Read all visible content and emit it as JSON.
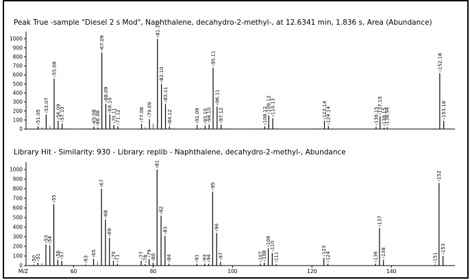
{
  "chart_data": [
    {
      "type": "bar",
      "title": "Peak True -sample \"Diesel 2 s Mod\", Naphthalene, decahydro-2-methyl-, at 12.6341 min, 1.836 s, Area (Abundance)",
      "xlabel": "",
      "ylabel": "",
      "xlim": [
        48,
        156
      ],
      "ylim": [
        0,
        1050
      ],
      "yticks": [
        0,
        100,
        200,
        300,
        400,
        500,
        600,
        700,
        800,
        900,
        1000
      ],
      "label_prefix": "‹",
      "peaks": [
        {
          "mz": 51.05,
          "y": 30,
          "label": "51.05"
        },
        {
          "mz": 53.07,
          "y": 160,
          "label": "53.07"
        },
        {
          "mz": 55.08,
          "y": 560,
          "label": "55.08"
        },
        {
          "mz": 56.09,
          "y": 90,
          "label": "56.09"
        },
        {
          "mz": 57.1,
          "y": 60,
          "label": "57.10"
        },
        {
          "mz": 65.08,
          "y": 28,
          "label": "65.08"
        },
        {
          "mz": 66.08,
          "y": 18,
          "label": "66.08"
        },
        {
          "mz": 67.09,
          "y": 850,
          "label": "67.09"
        },
        {
          "mz": 68.09,
          "y": 280,
          "label": "68.09"
        },
        {
          "mz": 69.1,
          "y": 160,
          "label": "69.10"
        },
        {
          "mz": 70.11,
          "y": 45,
          "label": "70.11"
        },
        {
          "mz": 71.12,
          "y": 30,
          "label": "71.12"
        },
        {
          "mz": 77.08,
          "y": 55,
          "label": "77.08"
        },
        {
          "mz": 79.09,
          "y": 110,
          "label": "79.09"
        },
        {
          "mz": 81.1,
          "y": 1000,
          "label": "81.10"
        },
        {
          "mz": 82.1,
          "y": 500,
          "label": "82.10"
        },
        {
          "mz": 83.11,
          "y": 280,
          "label": "83.11"
        },
        {
          "mz": 84.12,
          "y": 30,
          "label": "84.12"
        },
        {
          "mz": 91.09,
          "y": 45,
          "label": "91.09"
        },
        {
          "mz": 93.1,
          "y": 40,
          "label": "93.10"
        },
        {
          "mz": 94.1,
          "y": 50,
          "label": "94.10"
        },
        {
          "mz": 95.11,
          "y": 680,
          "label": "95.11"
        },
        {
          "mz": 96.11,
          "y": 250,
          "label": "96.11"
        },
        {
          "mz": 97.12,
          "y": 50,
          "label": "97.12"
        },
        {
          "mz": 108.12,
          "y": 30,
          "label": "108.12"
        },
        {
          "mz": 109.12,
          "y": 150,
          "label": "109.12"
        },
        {
          "mz": 110.13,
          "y": 120,
          "label": "110.13"
        },
        {
          "mz": 123.14,
          "y": 90,
          "label": "123.14"
        },
        {
          "mz": 124.14,
          "y": 30,
          "label": "124.14"
        },
        {
          "mz": 136.15,
          "y": 25,
          "label": "136.15"
        },
        {
          "mz": 137.15,
          "y": 140,
          "label": "137.15"
        },
        {
          "mz": 138.15,
          "y": 15,
          "label": "138.15"
        },
        {
          "mz": 138.94,
          "y": 20,
          "label": "138.94"
        },
        {
          "mz": 152.18,
          "y": 620,
          "label": "152.18"
        },
        {
          "mz": 153.18,
          "y": 90,
          "label": "153.18"
        }
      ],
      "minor_peaks": [
        {
          "mz": 52.0,
          "y": 20
        },
        {
          "mz": 54.0,
          "y": 35
        },
        {
          "mz": 58.0,
          "y": 8
        },
        {
          "mz": 63.0,
          "y": 10
        },
        {
          "mz": 64.0,
          "y": 8
        },
        {
          "mz": 78.0,
          "y": 20
        },
        {
          "mz": 80.0,
          "y": 60
        },
        {
          "mz": 85.0,
          "y": 10
        },
        {
          "mz": 92.0,
          "y": 12
        },
        {
          "mz": 98.0,
          "y": 8
        },
        {
          "mz": 105.0,
          "y": 6
        },
        {
          "mz": 107.0,
          "y": 8
        },
        {
          "mz": 111.0,
          "y": 10
        },
        {
          "mz": 121.0,
          "y": 6
        },
        {
          "mz": 122.0,
          "y": 8
        },
        {
          "mz": 139.0,
          "y": 6
        },
        {
          "mz": 151.0,
          "y": 10
        }
      ]
    },
    {
      "type": "bar",
      "title": "Library Hit - Similarity: 930 - Library: replib - Naphthalene, decahydro-2-methyl-, Abundance",
      "xlabel": "M/Z",
      "ylabel": "",
      "xlim": [
        48,
        156
      ],
      "ylim": [
        0,
        1050
      ],
      "yticks": [
        0,
        100,
        200,
        300,
        400,
        500,
        600,
        700,
        800,
        900,
        1000
      ],
      "xticks": [
        60,
        80,
        100,
        120,
        140
      ],
      "label_prefix": "‹",
      "peaks": [
        {
          "mz": 50,
          "y": 10,
          "label": "50"
        },
        {
          "mz": 51,
          "y": 30,
          "label": "51"
        },
        {
          "mz": 53,
          "y": 220,
          "label": "53"
        },
        {
          "mz": 54,
          "y": 210,
          "label": "54"
        },
        {
          "mz": 55,
          "y": 640,
          "label": "55"
        },
        {
          "mz": 56,
          "y": 60,
          "label": "56"
        },
        {
          "mz": 57,
          "y": 50,
          "label": "57"
        },
        {
          "mz": 63,
          "y": 10,
          "label": "63"
        },
        {
          "mz": 65,
          "y": 70,
          "label": "65"
        },
        {
          "mz": 67,
          "y": 800,
          "label": "67"
        },
        {
          "mz": 68,
          "y": 480,
          "label": "68"
        },
        {
          "mz": 69,
          "y": 290,
          "label": "69"
        },
        {
          "mz": 70,
          "y": 50,
          "label": "70"
        },
        {
          "mz": 71,
          "y": 20,
          "label": "71"
        },
        {
          "mz": 77,
          "y": 50,
          "label": "77"
        },
        {
          "mz": 78,
          "y": 15,
          "label": "78"
        },
        {
          "mz": 79,
          "y": 70,
          "label": "79"
        },
        {
          "mz": 80,
          "y": 30,
          "label": "80"
        },
        {
          "mz": 81,
          "y": 1000,
          "label": "81"
        },
        {
          "mz": 82,
          "y": 520,
          "label": "82"
        },
        {
          "mz": 83,
          "y": 310,
          "label": "83"
        },
        {
          "mz": 84,
          "y": 20,
          "label": "84"
        },
        {
          "mz": 91,
          "y": 20,
          "label": "91"
        },
        {
          "mz": 93,
          "y": 20,
          "label": "93"
        },
        {
          "mz": 94,
          "y": 20,
          "label": "94"
        },
        {
          "mz": 95,
          "y": 770,
          "label": "95"
        },
        {
          "mz": 96,
          "y": 340,
          "label": "96"
        },
        {
          "mz": 97,
          "y": 40,
          "label": "97"
        },
        {
          "mz": 107,
          "y": 20,
          "label": "107"
        },
        {
          "mz": 108,
          "y": 30,
          "label": "108"
        },
        {
          "mz": 109,
          "y": 180,
          "label": "109"
        },
        {
          "mz": 110,
          "y": 130,
          "label": "110"
        },
        {
          "mz": 111,
          "y": 15,
          "label": "111"
        },
        {
          "mz": 123,
          "y": 80,
          "label": "123"
        },
        {
          "mz": 124,
          "y": 20,
          "label": "124"
        },
        {
          "mz": 136,
          "y": 20,
          "label": "136"
        },
        {
          "mz": 137,
          "y": 390,
          "label": "137"
        },
        {
          "mz": 138,
          "y": 60,
          "label": "138"
        },
        {
          "mz": 151,
          "y": 10,
          "label": "151"
        },
        {
          "mz": 152,
          "y": 860,
          "label": "152"
        },
        {
          "mz": 153,
          "y": 100,
          "label": "153"
        }
      ],
      "minor_peaks": [
        {
          "mz": 52,
          "y": 25
        },
        {
          "mz": 58,
          "y": 8
        },
        {
          "mz": 64,
          "y": 6
        },
        {
          "mz": 66,
          "y": 40
        },
        {
          "mz": 92,
          "y": 8
        },
        {
          "mz": 98,
          "y": 6
        },
        {
          "mz": 122,
          "y": 6
        },
        {
          "mz": 135,
          "y": 6
        }
      ]
    }
  ]
}
